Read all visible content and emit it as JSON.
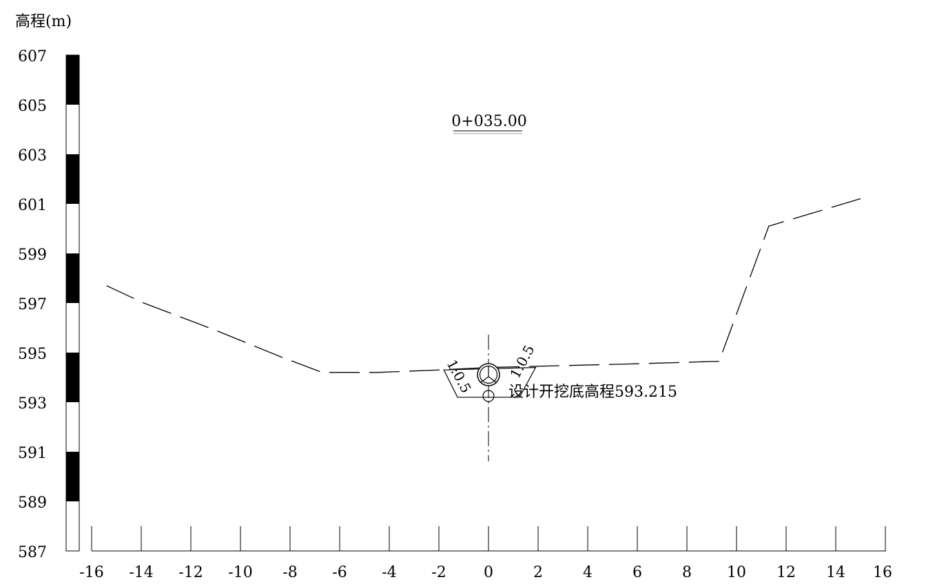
{
  "title": "高程(m)",
  "station": "0+035.00",
  "y_ticks": [
    "607",
    "605",
    "603",
    "601",
    "599",
    "597",
    "595",
    "593",
    "591",
    "589",
    "587"
  ],
  "x_ticks": [
    "-16",
    "-14",
    "-12",
    "-10",
    "-8",
    "-6",
    "-4",
    "-2",
    "0",
    "2",
    "4",
    "6",
    "8",
    "10",
    "12",
    "14",
    "16"
  ],
  "annotation": "设计开挖底高程593.215",
  "slope_left": "1:0.5",
  "slope_right": "1:0.5",
  "chart_data": {
    "type": "line",
    "ylim": [
      587,
      607
    ],
    "xlim": [
      -16,
      16
    ],
    "ground_profile": {
      "x": [
        -15.4,
        -13.9,
        -11.0,
        -8.3,
        -6.7,
        -4.5,
        -2.0,
        0.0,
        2.0,
        6.0,
        9.3,
        11.3,
        15.3
      ],
      "y": [
        597.7,
        597.0,
        595.9,
        594.8,
        594.2,
        594.2,
        594.3,
        594.4,
        594.45,
        594.55,
        594.65,
        600.1,
        601.3
      ]
    },
    "trench": {
      "top_left": [
        -1.8,
        594.3
      ],
      "top_right": [
        1.9,
        594.4
      ],
      "bottom_left": [
        -1.25,
        593.2
      ],
      "bottom_right": [
        1.25,
        593.2
      ]
    },
    "design_bottom_elevation": 593.215,
    "centerline_x": 0
  }
}
